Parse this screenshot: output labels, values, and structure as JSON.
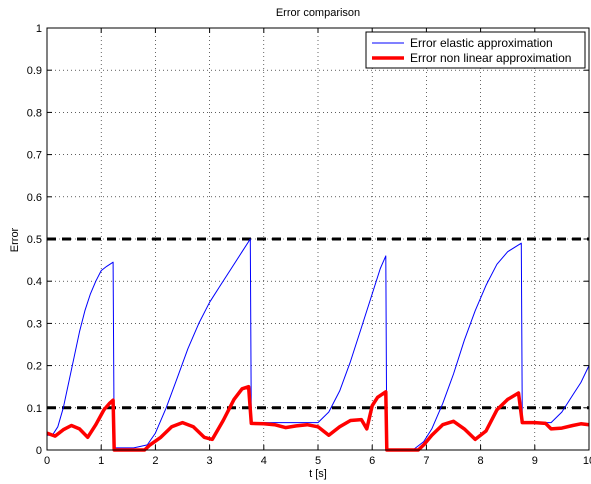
{
  "chart_data": {
    "type": "line",
    "title": "Error comparison",
    "xlabel": "t [s]",
    "ylabel": "Error",
    "xlim": [
      0,
      10
    ],
    "ylim": [
      0,
      1
    ],
    "grid": "on (dotted)",
    "legend_placement": "top-right",
    "xticks": [
      "0",
      "1",
      "2",
      "3",
      "4",
      "5",
      "6",
      "7",
      "8",
      "9",
      "10"
    ],
    "yticks": [
      "0",
      "0.1",
      "0.2",
      "0.3",
      "0.4",
      "0.5",
      "0.6",
      "0.7",
      "0.8",
      "0.9",
      "1"
    ],
    "series": [
      {
        "name": "Error elastic approximation",
        "color": "#0000ff",
        "style": "thin solid",
        "points": [
          [
            0,
            0.035
          ],
          [
            0.1,
            0.035
          ],
          [
            0.2,
            0.055
          ],
          [
            0.3,
            0.1
          ],
          [
            0.4,
            0.16
          ],
          [
            0.5,
            0.22
          ],
          [
            0.6,
            0.28
          ],
          [
            0.7,
            0.33
          ],
          [
            0.8,
            0.37
          ],
          [
            0.9,
            0.4
          ],
          [
            1.0,
            0.425
          ],
          [
            1.1,
            0.435
          ],
          [
            1.22,
            0.445
          ],
          [
            1.24,
            0.005
          ],
          [
            1.6,
            0.005
          ],
          [
            1.85,
            0.012
          ],
          [
            2.0,
            0.04
          ],
          [
            2.2,
            0.1
          ],
          [
            2.4,
            0.17
          ],
          [
            2.6,
            0.24
          ],
          [
            2.8,
            0.3
          ],
          [
            3.0,
            0.35
          ],
          [
            3.2,
            0.39
          ],
          [
            3.4,
            0.43
          ],
          [
            3.6,
            0.47
          ],
          [
            3.75,
            0.5
          ],
          [
            3.77,
            0.065
          ],
          [
            4.0,
            0.065
          ],
          [
            4.3,
            0.065
          ],
          [
            4.6,
            0.065
          ],
          [
            5.0,
            0.065
          ],
          [
            5.2,
            0.09
          ],
          [
            5.4,
            0.14
          ],
          [
            5.6,
            0.21
          ],
          [
            5.8,
            0.29
          ],
          [
            6.0,
            0.37
          ],
          [
            6.15,
            0.43
          ],
          [
            6.25,
            0.46
          ],
          [
            6.27,
            0.0
          ],
          [
            6.75,
            0.0
          ],
          [
            6.95,
            0.02
          ],
          [
            7.1,
            0.05
          ],
          [
            7.3,
            0.11
          ],
          [
            7.5,
            0.18
          ],
          [
            7.7,
            0.26
          ],
          [
            7.9,
            0.33
          ],
          [
            8.1,
            0.39
          ],
          [
            8.3,
            0.44
          ],
          [
            8.5,
            0.47
          ],
          [
            8.75,
            0.49
          ],
          [
            8.77,
            0.065
          ],
          [
            9.0,
            0.065
          ],
          [
            9.3,
            0.065
          ],
          [
            9.5,
            0.09
          ],
          [
            9.7,
            0.13
          ],
          [
            9.85,
            0.16
          ],
          [
            10.0,
            0.2
          ]
        ]
      },
      {
        "name": "Error non linear approximation",
        "color": "#ff0000",
        "style": "thick solid",
        "points": [
          [
            0,
            0.04
          ],
          [
            0.15,
            0.033
          ],
          [
            0.3,
            0.048
          ],
          [
            0.45,
            0.058
          ],
          [
            0.6,
            0.05
          ],
          [
            0.75,
            0.03
          ],
          [
            0.9,
            0.06
          ],
          [
            1.05,
            0.095
          ],
          [
            1.15,
            0.11
          ],
          [
            1.22,
            0.118
          ],
          [
            1.24,
            0.0
          ],
          [
            1.8,
            0.0
          ],
          [
            1.9,
            0.012
          ],
          [
            2.1,
            0.03
          ],
          [
            2.3,
            0.055
          ],
          [
            2.5,
            0.065
          ],
          [
            2.7,
            0.055
          ],
          [
            2.9,
            0.03
          ],
          [
            3.05,
            0.025
          ],
          [
            3.25,
            0.07
          ],
          [
            3.45,
            0.12
          ],
          [
            3.6,
            0.145
          ],
          [
            3.72,
            0.15
          ],
          [
            3.77,
            0.063
          ],
          [
            4.0,
            0.062
          ],
          [
            4.2,
            0.06
          ],
          [
            4.4,
            0.053
          ],
          [
            4.6,
            0.057
          ],
          [
            4.8,
            0.06
          ],
          [
            5.0,
            0.055
          ],
          [
            5.2,
            0.035
          ],
          [
            5.4,
            0.055
          ],
          [
            5.6,
            0.07
          ],
          [
            5.8,
            0.072
          ],
          [
            5.9,
            0.05
          ],
          [
            6.0,
            0.105
          ],
          [
            6.1,
            0.125
          ],
          [
            6.25,
            0.138
          ],
          [
            6.27,
            0.0
          ],
          [
            6.85,
            0.0
          ],
          [
            6.95,
            0.012
          ],
          [
            7.1,
            0.035
          ],
          [
            7.3,
            0.06
          ],
          [
            7.5,
            0.068
          ],
          [
            7.7,
            0.05
          ],
          [
            7.9,
            0.025
          ],
          [
            8.1,
            0.045
          ],
          [
            8.3,
            0.095
          ],
          [
            8.5,
            0.12
          ],
          [
            8.7,
            0.135
          ],
          [
            8.77,
            0.065
          ],
          [
            9.0,
            0.065
          ],
          [
            9.2,
            0.063
          ],
          [
            9.3,
            0.05
          ],
          [
            9.5,
            0.052
          ],
          [
            9.7,
            0.058
          ],
          [
            9.85,
            0.062
          ],
          [
            10.0,
            0.06
          ]
        ]
      }
    ],
    "reference_lines": [
      {
        "y": 0.5,
        "color": "#000000",
        "style": "thick dashed"
      },
      {
        "y": 0.1,
        "color": "#000000",
        "style": "thick dashed"
      }
    ]
  }
}
